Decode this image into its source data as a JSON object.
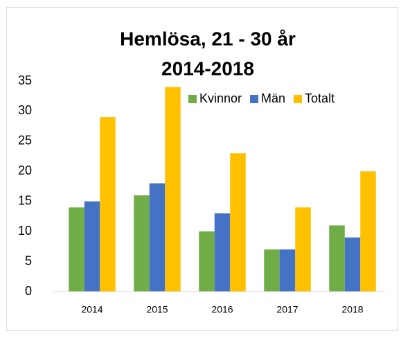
{
  "chart_data": {
    "type": "bar",
    "title": "Hemlösa, 21 - 30 år",
    "subtitle": "2014-2018",
    "categories": [
      "2014",
      "2015",
      "2016",
      "2017",
      "2018"
    ],
    "series": [
      {
        "name": "Kvinnor",
        "color": "#70ad47",
        "values": [
          14,
          16,
          10,
          7,
          11
        ]
      },
      {
        "name": "Män",
        "color": "#4472c4",
        "values": [
          15,
          18,
          13,
          7,
          9
        ]
      },
      {
        "name": "Totalt",
        "color": "#ffc000",
        "values": [
          29,
          34,
          23,
          14,
          20
        ]
      }
    ],
    "ylim": [
      0,
      35
    ],
    "yticks": [
      0,
      5,
      10,
      15,
      20,
      25,
      30,
      35
    ],
    "grid": false,
    "legend": "upper right"
  }
}
